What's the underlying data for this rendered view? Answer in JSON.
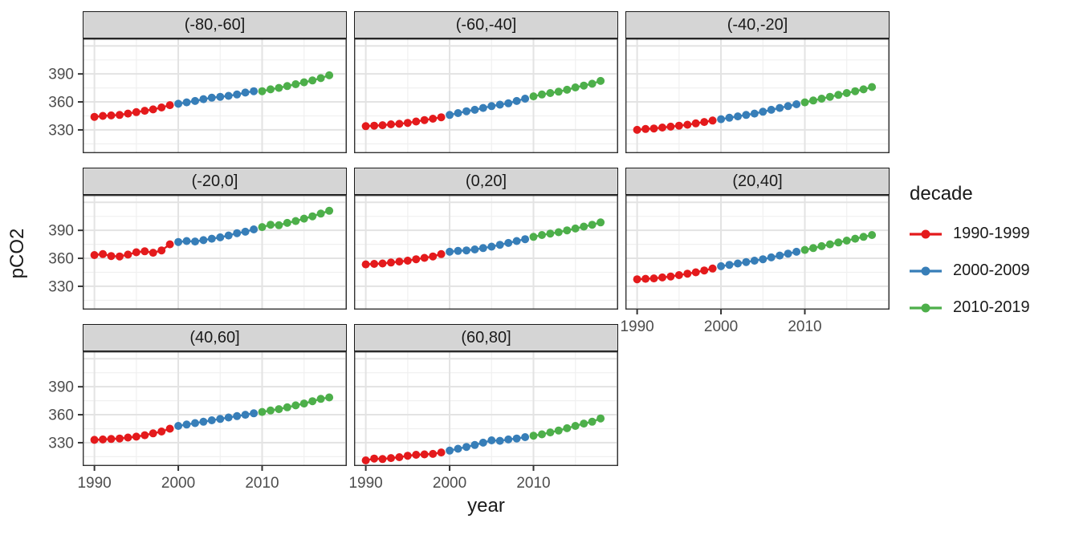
{
  "chart_data": {
    "type": "scatter",
    "title": "",
    "xlabel": "year",
    "ylabel": "pCO2",
    "xlim": [
      1988.6,
      2020.1
    ],
    "ylim": [
      305,
      428
    ],
    "x_ticks": [
      1990,
      2000,
      2010
    ],
    "y_ticks": [
      390,
      360,
      330
    ],
    "x_grid_major": [
      1990,
      2000,
      2010,
      2020
    ],
    "x_grid_minor": [
      1995,
      2005,
      2015
    ],
    "y_grid_major": [
      330,
      360,
      390,
      420
    ],
    "y_grid_minor": [
      315,
      345,
      375,
      405
    ],
    "grid": true,
    "years": [
      1990,
      1991,
      1992,
      1993,
      1994,
      1995,
      1996,
      1997,
      1998,
      1999,
      2000,
      2001,
      2002,
      2003,
      2004,
      2005,
      2006,
      2007,
      2008,
      2009,
      2010,
      2011,
      2012,
      2013,
      2014,
      2015,
      2016,
      2017,
      2018
    ],
    "decades": [
      {
        "name": "1990-1999",
        "start": 1990,
        "end": 1999,
        "color": "#E41A1C"
      },
      {
        "name": "2000-2009",
        "start": 2000,
        "end": 2009,
        "color": "#377EB8"
      },
      {
        "name": "2010-2019",
        "start": 2010,
        "end": 2019,
        "color": "#4DAF4A"
      }
    ],
    "legend": {
      "title": "decade",
      "position": "right",
      "entries": [
        {
          "label": "1990-1999",
          "color": "#E41A1C"
        },
        {
          "label": "2000-2009",
          "color": "#377EB8"
        },
        {
          "label": "2010-2019",
          "color": "#4DAF4A"
        }
      ]
    },
    "facets": [
      {
        "label": "(-80,-60]",
        "values": [
          344,
          345,
          345.5,
          346,
          347.5,
          349,
          350.5,
          352,
          354,
          356.5,
          358,
          359.5,
          361,
          363,
          364.5,
          365.5,
          366.5,
          368,
          370,
          371.5,
          371.5,
          373.5,
          375,
          377,
          379,
          381,
          383,
          385.5,
          388.5
        ]
      },
      {
        "label": "(-60,-40]",
        "values": [
          334,
          334.5,
          335,
          336,
          336.5,
          337.5,
          339,
          340.5,
          342,
          343.5,
          346,
          348,
          350,
          351.5,
          353.5,
          355.5,
          357,
          358.5,
          361,
          363.5,
          366,
          368,
          369.5,
          371,
          373,
          375.5,
          377.5,
          379.5,
          382.5
        ]
      },
      {
        "label": "(-40,-20]",
        "values": [
          330,
          331,
          331.5,
          332.5,
          333.5,
          334.5,
          335.5,
          337,
          338.5,
          340,
          341.5,
          343,
          344.5,
          346,
          347.5,
          349.5,
          351.5,
          353.5,
          355.5,
          357.5,
          359.5,
          361.5,
          363.5,
          365.5,
          367.5,
          369.5,
          371.5,
          373.5,
          376
        ]
      },
      {
        "label": "(-20,0]",
        "values": [
          363.5,
          364.5,
          362.5,
          362,
          364,
          366.5,
          367.5,
          366,
          368.5,
          375,
          377.5,
          378.5,
          378,
          379.5,
          381,
          382.5,
          384.5,
          387,
          388.5,
          391,
          393.5,
          396,
          395.5,
          398,
          400,
          402.5,
          405,
          408,
          411
        ]
      },
      {
        "label": "(0,20]",
        "values": [
          353.5,
          354,
          354.5,
          355.5,
          356.5,
          357.5,
          359,
          360.5,
          362,
          364.5,
          367,
          368,
          368.5,
          369.5,
          371,
          372.5,
          374.5,
          376.5,
          378.5,
          380.5,
          383,
          385,
          386.5,
          388,
          390,
          392,
          394,
          396,
          398.5
        ]
      },
      {
        "label": "(20,40]",
        "values": [
          337.5,
          338,
          338.5,
          339.5,
          340.5,
          342,
          343.5,
          345,
          347,
          349,
          351.5,
          353,
          354.5,
          356,
          357.5,
          359,
          361,
          363,
          365,
          367,
          369,
          371,
          373,
          375,
          377,
          379,
          381,
          383,
          385
        ]
      },
      {
        "label": "(40,60]",
        "values": [
          333,
          333.5,
          334,
          334.5,
          335.5,
          336.5,
          338,
          340,
          342,
          345,
          348,
          349.5,
          351,
          352.5,
          354,
          355.5,
          357,
          358.5,
          360,
          361.5,
          363,
          364.5,
          366,
          368,
          370,
          372,
          374.5,
          377,
          378.5
        ]
      },
      {
        "label": "(60,80]",
        "values": [
          311,
          313,
          312.5,
          313.5,
          314.5,
          316,
          317,
          317.5,
          318,
          319.5,
          321.5,
          323.5,
          325.5,
          327.5,
          330,
          332.5,
          332,
          333.5,
          334.5,
          336,
          337.5,
          339,
          341,
          343,
          345.5,
          348,
          350.5,
          352.5,
          356
        ]
      }
    ],
    "colors": {
      "background": "#FFFFFF",
      "strip_fill": "#D5D5D5",
      "strip_border": "#1A1A1A",
      "panel_border": "#333333",
      "grid_major": "#E3E3E3",
      "grid_minor": "#F0F0F0",
      "tick_text": "#4D4D4D",
      "tick_mark": "#333333"
    }
  }
}
